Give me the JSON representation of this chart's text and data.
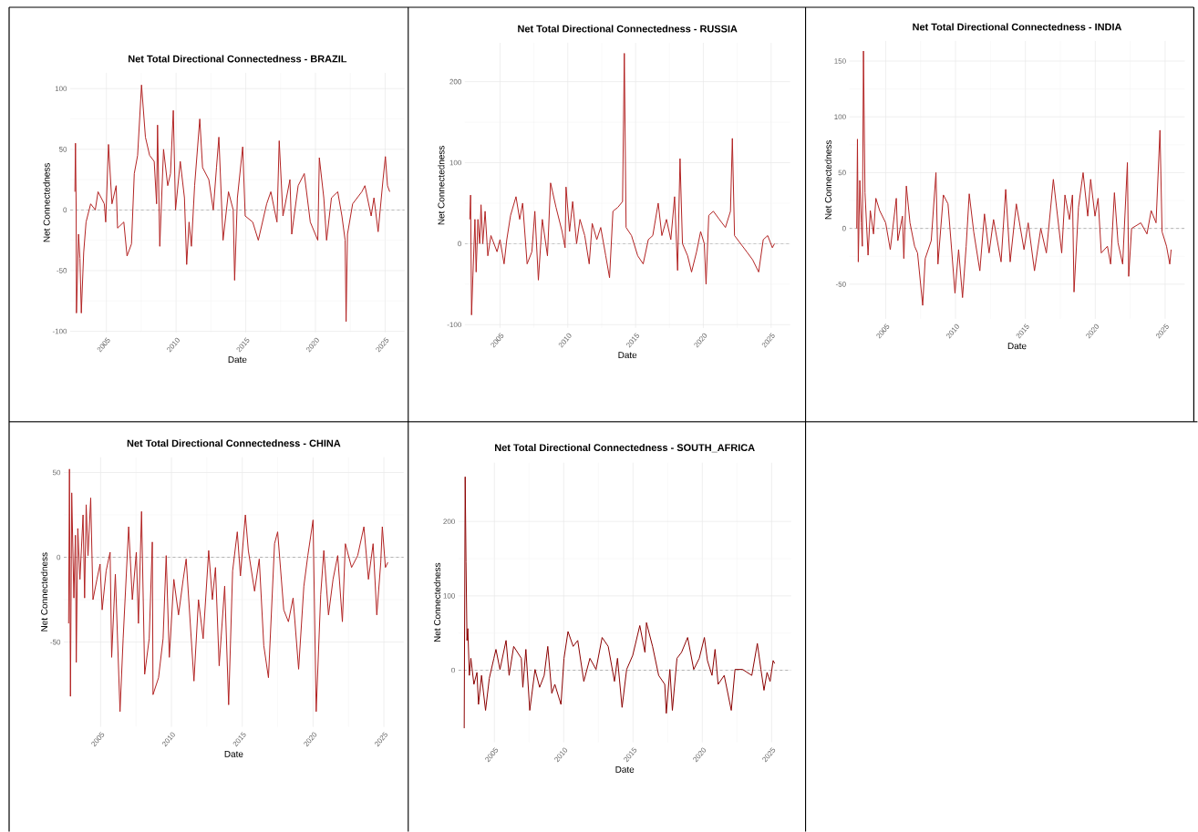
{
  "chart_data": [
    {
      "type": "line",
      "title": "Net Total Directional Connectedness - BRAZIL",
      "xlabel": "Date",
      "ylabel": "Net Connectedness",
      "xlim": [
        2002.4,
        2026.4
      ],
      "ylim": [
        -101,
        113
      ],
      "xticks": [
        2005,
        2010,
        2015,
        2020,
        2025
      ],
      "yticks": [
        -100,
        -50,
        0,
        50,
        100
      ],
      "grid": true,
      "ref_lines": [
        {
          "axis": "y",
          "value": 0,
          "color": "#8c8c8c",
          "line_style": "dashed"
        }
      ],
      "x": [
        2002.74,
        2002.78,
        2002.83,
        2002.85,
        2003.0,
        2003.1,
        2003.2,
        2003.37,
        2003.54,
        2003.87,
        2004.2,
        2004.4,
        2004.85,
        2004.95,
        2005.15,
        2005.4,
        2005.7,
        2005.8,
        2006.25,
        2006.48,
        2006.8,
        2007.0,
        2007.24,
        2007.52,
        2007.8,
        2008.1,
        2008.43,
        2008.6,
        2008.67,
        2008.83,
        2009.1,
        2009.4,
        2009.6,
        2009.8,
        2009.96,
        2010.3,
        2010.6,
        2010.76,
        2010.93,
        2011.1,
        2011.33,
        2011.7,
        2011.9,
        2012.35,
        2012.67,
        2012.9,
        2013.07,
        2013.37,
        2013.76,
        2014.1,
        2014.2,
        2014.4,
        2014.78,
        2014.96,
        2015.5,
        2015.9,
        2016.5,
        2016.8,
        2017.24,
        2017.4,
        2017.67,
        2018.17,
        2018.3,
        2018.76,
        2019.2,
        2019.63,
        2020.17,
        2020.28,
        2020.6,
        2020.8,
        2021.15,
        2021.6,
        2021.9,
        2022.13,
        2022.2,
        2022.3,
        2022.67,
        2023.33,
        2023.55,
        2024.0,
        2024.2,
        2024.5,
        2024.85,
        2025.02,
        2025.17,
        2025.33
      ],
      "series": [
        {
          "color": "#b22222",
          "values": [
            15,
            55,
            0,
            -85,
            -20,
            -40,
            -85,
            -35,
            -10,
            5,
            0,
            15,
            5,
            -10,
            54,
            5,
            20,
            -15,
            -10,
            -38,
            -28,
            30,
            45,
            103,
            60,
            45,
            40,
            5,
            70,
            -30,
            50,
            20,
            30,
            82,
            0,
            40,
            10,
            -45,
            -10,
            -30,
            20,
            75,
            35,
            25,
            0,
            35,
            60,
            -25,
            15,
            0,
            -58,
            10,
            52,
            -5,
            -10,
            -25,
            5,
            15,
            -10,
            57,
            -5,
            25,
            -20,
            20,
            30,
            -10,
            -25,
            43,
            10,
            -25,
            10,
            15,
            -5,
            -25,
            -92,
            -20,
            5,
            15,
            20,
            -5,
            10,
            -18,
            25,
            44,
            20,
            15
          ]
        }
      ]
    },
    {
      "type": "line",
      "title": "Net Total Directional Connectedness - RUSSIA",
      "xlabel": "Date",
      "ylabel": "Net Connectedness",
      "xlim": [
        2002.4,
        2026.4
      ],
      "ylim": [
        -104,
        248
      ],
      "xticks": [
        2005,
        2010,
        2015,
        2020,
        2025
      ],
      "yticks": [
        -100,
        0,
        100,
        200
      ],
      "grid": true,
      "ref_lines": [
        {
          "axis": "y",
          "value": 0,
          "color": "#8c8c8c",
          "line_style": "dashed"
        }
      ],
      "x": [
        2002.77,
        2002.83,
        2002.9,
        2003.0,
        2003.15,
        2003.24,
        2003.37,
        2003.5,
        2003.6,
        2003.73,
        2003.9,
        2004.1,
        2004.33,
        2004.78,
        2005.0,
        2005.3,
        2005.5,
        2005.78,
        2006.18,
        2006.45,
        2006.67,
        2007.0,
        2007.35,
        2007.57,
        2007.83,
        2008.12,
        2008.5,
        2008.73,
        2009.13,
        2009.58,
        2009.8,
        2009.87,
        2010.13,
        2010.36,
        2010.65,
        2010.9,
        2011.25,
        2011.58,
        2011.8,
        2012.14,
        2012.43,
        2012.8,
        2013.08,
        2013.33,
        2013.7,
        2014.04,
        2014.17,
        2014.3,
        2014.7,
        2015.16,
        2015.56,
        2015.94,
        2016.27,
        2016.67,
        2016.94,
        2017.28,
        2017.6,
        2017.88,
        2018.1,
        2018.28,
        2018.46,
        2018.84,
        2019.13,
        2019.5,
        2019.8,
        2020.07,
        2020.2,
        2020.4,
        2020.74,
        2021.18,
        2021.63,
        2022.0,
        2022.14,
        2022.3,
        2022.75,
        2023.2,
        2023.64,
        2024.08,
        2024.42,
        2024.75,
        2025.09,
        2025.25
      ],
      "series": [
        {
          "color": "#b22222",
          "values": [
            30,
            60,
            -88,
            -40,
            30,
            -35,
            30,
            0,
            48,
            0,
            40,
            -15,
            10,
            -10,
            5,
            -25,
            5,
            35,
            58,
            30,
            50,
            -25,
            -10,
            40,
            -45,
            30,
            -15,
            75,
            45,
            15,
            -5,
            70,
            15,
            52,
            0,
            30,
            10,
            -25,
            25,
            5,
            20,
            -15,
            -42,
            40,
            45,
            52,
            235,
            20,
            10,
            -15,
            -25,
            5,
            10,
            50,
            10,
            30,
            5,
            58,
            -33,
            105,
            0,
            -15,
            -35,
            -10,
            15,
            0,
            -50,
            35,
            40,
            30,
            20,
            40,
            130,
            10,
            0,
            -10,
            -20,
            -35,
            5,
            10,
            -5,
            0
          ]
        }
      ]
    },
    {
      "type": "line",
      "title": "Net Total Directional Connectedness - INDIA",
      "xlabel": "Date",
      "ylabel": "Net Connectedness",
      "xlim": [
        2002.4,
        2026.4
      ],
      "ylim": [
        -81,
        168
      ],
      "xticks": [
        2005,
        2010,
        2015,
        2020,
        2025
      ],
      "yticks": [
        -50,
        0,
        50,
        100,
        150
      ],
      "grid": true,
      "ref_lines": [
        {
          "axis": "y",
          "value": 0,
          "color": "#8c8c8c",
          "line_style": "dashed"
        }
      ],
      "x": [
        2002.93,
        2002.98,
        2003.04,
        2003.15,
        2003.26,
        2003.33,
        2003.41,
        2003.52,
        2003.74,
        2003.9,
        2004.13,
        2004.3,
        2004.57,
        2005.0,
        2005.33,
        2005.76,
        2005.87,
        2006.2,
        2006.3,
        2006.48,
        2006.74,
        2007.07,
        2007.28,
        2007.65,
        2007.83,
        2008.26,
        2008.6,
        2008.74,
        2009.13,
        2009.46,
        2009.67,
        2009.96,
        2010.22,
        2010.5,
        2010.76,
        2010.98,
        2011.3,
        2011.74,
        2012.07,
        2012.4,
        2012.72,
        2013.26,
        2013.59,
        2013.91,
        2014.35,
        2014.9,
        2015.2,
        2015.65,
        2016.1,
        2016.5,
        2017.0,
        2017.4,
        2017.6,
        2017.83,
        2018.15,
        2018.37,
        2018.48,
        2018.8,
        2019.13,
        2019.46,
        2019.67,
        2019.98,
        2020.2,
        2020.43,
        2020.87,
        2021.1,
        2021.37,
        2021.63,
        2021.96,
        2022.3,
        2022.39,
        2022.6,
        2023.26,
        2023.7,
        2024.0,
        2024.35,
        2024.63,
        2024.78,
        2025.1,
        2025.33,
        2025.43
      ],
      "series": [
        {
          "color": "#b22222",
          "values": [
            0,
            80,
            -30,
            43,
            5,
            -16,
            159,
            32,
            -24,
            16,
            -5,
            27,
            16,
            5,
            -19,
            27,
            -11,
            11,
            -27,
            38,
            5,
            -16,
            -22,
            -69,
            -27,
            -11,
            50,
            -32,
            30,
            22,
            -11,
            -58,
            -19,
            -62,
            -16,
            31,
            -3,
            -38,
            13,
            -22,
            8,
            -30,
            35,
            -30,
            22,
            -19,
            5,
            -38,
            0,
            -22,
            44,
            0,
            -22,
            30,
            8,
            30,
            -57,
            19,
            50,
            11,
            44,
            11,
            27,
            -22,
            -16,
            -32,
            32,
            -13,
            -32,
            59,
            -43,
            0,
            5,
            -5,
            16,
            5,
            88,
            -3,
            -16,
            -32,
            -19
          ]
        }
      ]
    },
    {
      "type": "line",
      "title": "Net Total Directional Connectedness - CHINA",
      "xlabel": "Date",
      "ylabel": "Net Connectedness",
      "xlim": [
        2002.4,
        2026.4
      ],
      "ylim": [
        -100,
        59
      ],
      "xticks": [
        2005,
        2010,
        2015,
        2020,
        2025
      ],
      "yticks": [
        -50,
        0,
        50
      ],
      "grid": true,
      "ref_lines": [
        {
          "axis": "y",
          "value": 0,
          "color": "#8c8c8c",
          "line_style": "dashed"
        }
      ],
      "x": [
        2002.74,
        2002.8,
        2002.87,
        2002.96,
        2003.11,
        2003.22,
        2003.28,
        2003.39,
        2003.54,
        2003.76,
        2003.87,
        2003.98,
        2004.11,
        2004.3,
        2004.46,
        2004.74,
        2004.96,
        2005.11,
        2005.39,
        2005.67,
        2005.78,
        2006.04,
        2006.37,
        2006.59,
        2006.98,
        2007.24,
        2007.52,
        2007.67,
        2007.89,
        2008.11,
        2008.43,
        2008.65,
        2008.7,
        2009.09,
        2009.41,
        2009.63,
        2009.85,
        2010.17,
        2010.5,
        2010.83,
        2011.04,
        2011.59,
        2011.91,
        2012.24,
        2012.63,
        2012.89,
        2013.11,
        2013.37,
        2013.76,
        2014.04,
        2014.32,
        2014.65,
        2014.87,
        2015.22,
        2015.43,
        2015.87,
        2016.2,
        2016.52,
        2016.85,
        2017.28,
        2017.5,
        2017.93,
        2018.26,
        2018.59,
        2018.98,
        2019.35,
        2019.63,
        2020.0,
        2020.22,
        2020.54,
        2020.76,
        2021.09,
        2021.41,
        2021.74,
        2022.07,
        2022.28,
        2022.72,
        2023.15,
        2023.59,
        2023.91,
        2024.24,
        2024.5,
        2024.78,
        2024.89,
        2025.11,
        2025.28
      ],
      "series": [
        {
          "color": "#b22222",
          "values": [
            -39,
            52,
            -82,
            38,
            -24,
            13,
            -62,
            17,
            -13,
            25,
            -24,
            31,
            1,
            35,
            -25,
            -13,
            -4,
            -31,
            -8,
            3,
            -59,
            -10,
            -91,
            -48,
            18,
            -25,
            3,
            -39,
            27,
            -69,
            -48,
            9,
            -81,
            -71,
            -48,
            1,
            -59,
            -13,
            -34,
            -13,
            -1,
            -73,
            -25,
            -48,
            4,
            -25,
            -6,
            -64,
            -17,
            -87,
            -8,
            15,
            -11,
            25,
            4,
            -20,
            -1,
            -52,
            -71,
            8,
            15,
            -31,
            -38,
            -24,
            -66,
            -17,
            1,
            22,
            -91,
            -22,
            4,
            -34,
            -13,
            1,
            -38,
            8,
            -6,
            1,
            18,
            -13,
            8,
            -34,
            -3,
            18,
            -6,
            -3
          ]
        }
      ]
    },
    {
      "type": "line",
      "title": "Net Total Directional Connectedness - SOUTH_AFRICA",
      "xlabel": "Date",
      "ylabel": "Net Connectedness",
      "xlim": [
        2002.4,
        2026.4
      ],
      "ylim": [
        -97,
        279
      ],
      "xticks": [
        2005,
        2010,
        2015,
        2020,
        2025
      ],
      "yticks": [
        0,
        100,
        200
      ],
      "grid": true,
      "ref_lines": [
        {
          "axis": "y",
          "value": 0,
          "color": "#8c8c8c",
          "line_style": "dashed"
        }
      ],
      "x": [
        2002.82,
        2002.89,
        2002.95,
        2003.02,
        2003.08,
        2003.19,
        2003.3,
        2003.52,
        2003.74,
        2003.85,
        2004.07,
        2004.36,
        2004.63,
        2004.96,
        2005.11,
        2005.4,
        2005.84,
        2006.06,
        2006.39,
        2006.94,
        2007.05,
        2007.27,
        2007.55,
        2007.93,
        2008.26,
        2008.59,
        2008.85,
        2009.14,
        2009.36,
        2009.8,
        2010.02,
        2010.31,
        2010.68,
        2011.01,
        2011.45,
        2011.89,
        2012.33,
        2012.77,
        2013.21,
        2013.66,
        2013.88,
        2014.21,
        2014.54,
        2014.98,
        2015.49,
        2015.86,
        2015.97,
        2016.41,
        2016.85,
        2017.29,
        2017.4,
        2017.66,
        2017.84,
        2018.17,
        2018.5,
        2018.94,
        2019.38,
        2019.78,
        2020.15,
        2020.37,
        2020.7,
        2020.92,
        2021.14,
        2021.58,
        2022.09,
        2022.36,
        2022.91,
        2023.57,
        2023.97,
        2024.23,
        2024.45,
        2024.67,
        2024.89,
        2025.11,
        2025.22
      ],
      "series": [
        {
          "color": "#8b0000",
          "values": [
            -78,
            260,
            146,
            40,
            56,
            -7,
            16,
            -19,
            -3,
            -46,
            -7,
            -54,
            -11,
            16,
            28,
            1,
            40,
            -7,
            32,
            16,
            -23,
            28,
            -54,
            1,
            -23,
            -7,
            32,
            -31,
            -19,
            -46,
            16,
            52,
            32,
            40,
            -15,
            16,
            1,
            44,
            32,
            -15,
            16,
            -50,
            1,
            20,
            60,
            24,
            64,
            32,
            -7,
            -19,
            -58,
            1,
            -54,
            16,
            24,
            44,
            1,
            16,
            44,
            13,
            -7,
            28,
            -19,
            -7,
            -54,
            1,
            1,
            -7,
            36,
            1,
            -27,
            -3,
            -15,
            13,
            9
          ]
        }
      ]
    }
  ]
}
